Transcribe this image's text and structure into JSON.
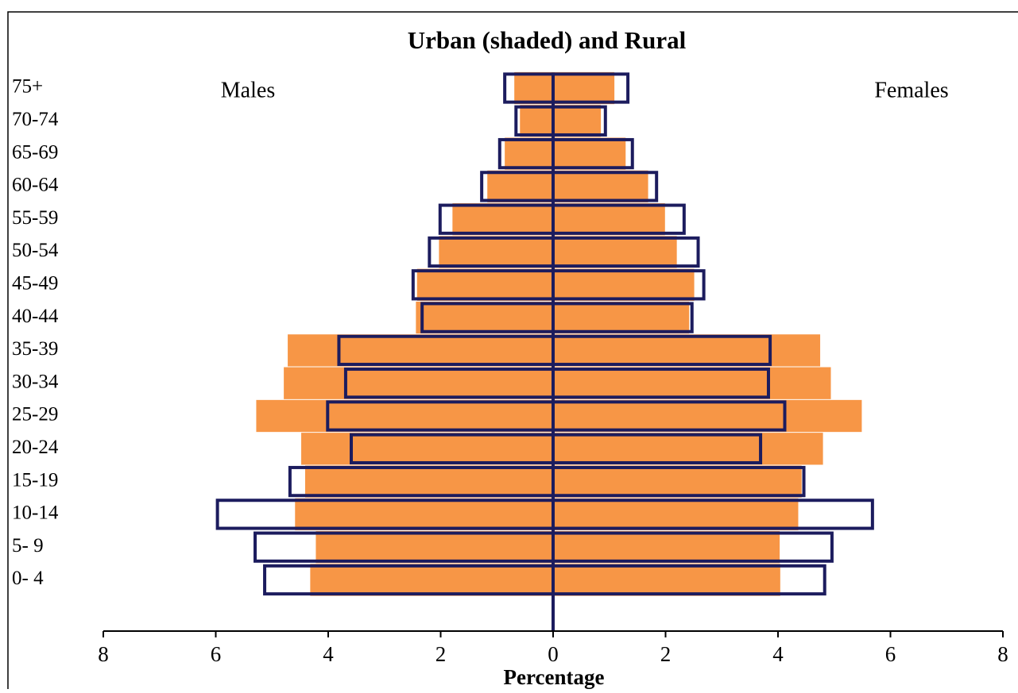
{
  "chart_data": {
    "type": "pyramid",
    "title": "Urban (shaded) and Rural",
    "xlabel": "Percentage",
    "annotations": [
      "Males",
      "Females"
    ],
    "categories": [
      "75+",
      "70-74",
      "65-69",
      "60-64",
      "55-59",
      "50-54",
      "45-49",
      "40-44",
      "35-39",
      "30-34",
      "25-29",
      "20-24",
      "15-19",
      "10-14",
      "5- 9",
      "0- 4"
    ],
    "series": [
      {
        "style": "filled",
        "color": "#f79646",
        "values": [
          -0.69,
          -0.59,
          -0.86,
          -1.17,
          -1.79,
          -2.03,
          -2.42,
          -2.44,
          -4.72,
          -4.79,
          -5.28,
          -4.48,
          -4.41,
          -4.59,
          -4.22,
          -4.32
        ]
      },
      {
        "style": "filled",
        "color": "#f79646",
        "values": [
          1.09,
          0.85,
          1.29,
          1.69,
          1.99,
          2.2,
          2.51,
          2.42,
          4.75,
          4.94,
          5.49,
          4.8,
          4.42,
          4.36,
          4.03,
          4.04
        ]
      },
      {
        "style": "outline",
        "color": "#1c1c5e",
        "values": [
          -0.86,
          -0.66,
          -0.95,
          -1.27,
          -2.01,
          -2.2,
          -2.49,
          -2.33,
          -3.81,
          -3.69,
          -4.01,
          -3.59,
          -4.68,
          -5.97,
          -5.3,
          -5.13
        ]
      },
      {
        "style": "outline",
        "color": "#1c1c5e",
        "values": [
          1.33,
          0.93,
          1.41,
          1.84,
          2.33,
          2.58,
          2.68,
          2.47,
          3.86,
          3.83,
          4.12,
          3.69,
          4.46,
          5.68,
          4.96,
          4.83
        ]
      }
    ],
    "xlim": [
      -8,
      8
    ],
    "xticks": [
      {
        "value": -8,
        "label": "8"
      },
      {
        "value": -6,
        "label": "6"
      },
      {
        "value": -4,
        "label": "4"
      },
      {
        "value": -2,
        "label": "2"
      },
      0,
      2,
      4,
      6,
      8
    ]
  }
}
